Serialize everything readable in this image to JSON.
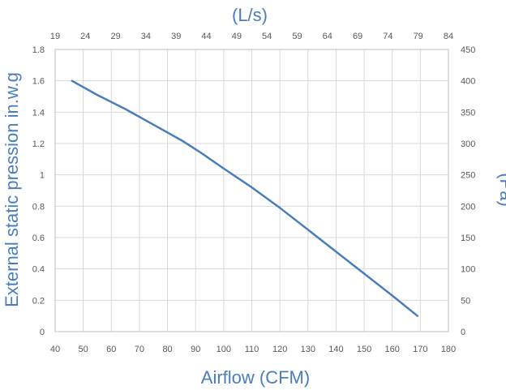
{
  "chart_data": {
    "type": "line",
    "title": "",
    "xlabel": "Airflow (CFM)",
    "x2label": "(L/s)",
    "ylabel": "External static pression in.w.g",
    "y2label": "(Pa)",
    "xlim": [
      40,
      180
    ],
    "ylim": [
      0,
      1.8
    ],
    "x2lim": [
      19,
      84
    ],
    "y2lim": [
      0,
      450
    ],
    "x_ticks": [
      "40",
      "50",
      "60",
      "70",
      "80",
      "90",
      "100",
      "110",
      "120",
      "130",
      "140",
      "150",
      "160",
      "170",
      "180"
    ],
    "y_ticks": [
      "0",
      "0.2",
      "0.4",
      "0.6",
      "0.8",
      "1",
      "1.2",
      "1.4",
      "1.6",
      "1.8"
    ],
    "x2_ticks": [
      "19",
      "24",
      "29",
      "34",
      "39",
      "44",
      "49",
      "54",
      "59",
      "64",
      "69",
      "74",
      "79",
      "84"
    ],
    "y2_ticks": [
      "0",
      "50",
      "100",
      "150",
      "200",
      "250",
      "300",
      "350",
      "400",
      "450"
    ],
    "grid": true,
    "series": [
      {
        "color": "#4a7ebb",
        "x": [
          46,
          55,
          65,
          75,
          85,
          92,
          100,
          110,
          120,
          130,
          140,
          150,
          160,
          169
        ],
        "y": [
          1.6,
          1.51,
          1.42,
          1.32,
          1.22,
          1.14,
          1.04,
          0.92,
          0.79,
          0.65,
          0.51,
          0.37,
          0.23,
          0.1
        ]
      }
    ]
  }
}
